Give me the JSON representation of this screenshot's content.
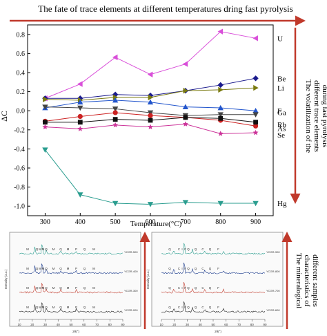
{
  "title": "The fate of trace elements at different temperatures dring fast pyrolysis",
  "side_note_top": [
    "The volatilization of the",
    "different trace elements",
    "during fast pyrolysis"
  ],
  "side_note_bottom": [
    "The mineralogical",
    "characteristics of",
    "different samples"
  ],
  "colors": {
    "arrow": "#c0392b"
  },
  "chart_data": [
    {
      "type": "line",
      "xlabel": "Temperature(°C)",
      "ylabel": "ΔC",
      "xlim": [
        250,
        950
      ],
      "ylim": [
        -1.1,
        0.9
      ],
      "x_ticks": [
        "300",
        "400",
        "500",
        "600",
        "700",
        "800",
        "900"
      ],
      "y_ticks": [
        "0.8",
        "0.6",
        "0.4",
        "0.2",
        "0.0",
        "-0.2",
        "-0.4",
        "-0.6",
        "-0.8",
        "-1.0"
      ],
      "x": [
        300,
        400,
        500,
        600,
        700,
        800,
        900
      ],
      "grid": false,
      "series": [
        {
          "name": "U",
          "marker": "tri-left",
          "color": "#d94fd9",
          "values": [
            0.13,
            0.28,
            0.56,
            0.38,
            0.49,
            0.83,
            0.76
          ]
        },
        {
          "name": "Be",
          "marker": "diamond",
          "color": "#1a1a8c",
          "values": [
            0.13,
            0.13,
            0.17,
            0.16,
            0.21,
            0.27,
            0.34
          ]
        },
        {
          "name": "Li",
          "marker": "tri-right",
          "color": "#7a7a10",
          "values": [
            0.12,
            0.11,
            0.14,
            0.14,
            0.21,
            0.22,
            0.24
          ]
        },
        {
          "name": "F",
          "marker": "tri-up",
          "color": "#2255cc",
          "values": [
            0.03,
            0.09,
            0.11,
            0.09,
            0.04,
            0.03,
            0.0
          ]
        },
        {
          "name": "Ga",
          "marker": "tri-down",
          "color": "#444444",
          "values": [
            0.04,
            0.03,
            0.02,
            -0.02,
            -0.05,
            -0.04,
            -0.04
          ]
        },
        {
          "name": "As",
          "marker": "circle",
          "color": "#cc2222",
          "values": [
            -0.11,
            -0.06,
            -0.02,
            -0.05,
            -0.07,
            -0.1,
            -0.16
          ]
        },
        {
          "name": "Rb",
          "marker": "square",
          "color": "#111111",
          "values": [
            -0.12,
            -0.12,
            -0.09,
            -0.1,
            -0.07,
            -0.08,
            -0.12
          ]
        },
        {
          "name": "Se",
          "marker": "star",
          "color": "#cc3399",
          "values": [
            -0.17,
            -0.19,
            -0.15,
            -0.17,
            -0.14,
            -0.24,
            -0.23
          ]
        },
        {
          "name": "Hg",
          "marker": "tri-down",
          "color": "#2a9d8f",
          "values": [
            -0.41,
            -0.88,
            -0.97,
            -0.98,
            -0.96,
            -0.97,
            -0.97
          ]
        }
      ]
    },
    {
      "type": "line",
      "xlabel": "2θ(°)",
      "ylabel": "Intensity (a.u.)",
      "x_ticks": [
        "10",
        "20",
        "30",
        "40",
        "50",
        "60",
        "70",
        "80",
        "90"
      ],
      "series": [
        {
          "name": "YCGR-500",
          "color": "#2a9d8f"
        },
        {
          "name": "YCGR-400",
          "color": "#1a3a8c"
        },
        {
          "name": "YCGR-300",
          "color": "#c0392b"
        },
        {
          "name": "YCGR-000",
          "color": "#222222"
        }
      ],
      "peak_labels": [
        "M",
        "Q",
        "M",
        "M",
        "Q",
        "M",
        "Q",
        "M",
        "P",
        "Q",
        "M"
      ]
    },
    {
      "type": "line",
      "xlabel": "2θ(°)",
      "ylabel": "Intensity (a.u.)",
      "x_ticks": [
        "10",
        "20",
        "30",
        "40",
        "50",
        "60",
        "70",
        "80",
        "90"
      ],
      "series": [
        {
          "name": "YCGR-900",
          "color": "#2a9d8f"
        },
        {
          "name": "YCGR-800",
          "color": "#1a3a8c"
        },
        {
          "name": "YCGR-700",
          "color": "#c0392b"
        },
        {
          "name": "YCGR-600",
          "color": "#222222"
        }
      ],
      "peak_labels": [
        "Q",
        "C",
        "I",
        "F",
        "Q",
        "Q",
        "C",
        "Q",
        "F"
      ]
    }
  ]
}
